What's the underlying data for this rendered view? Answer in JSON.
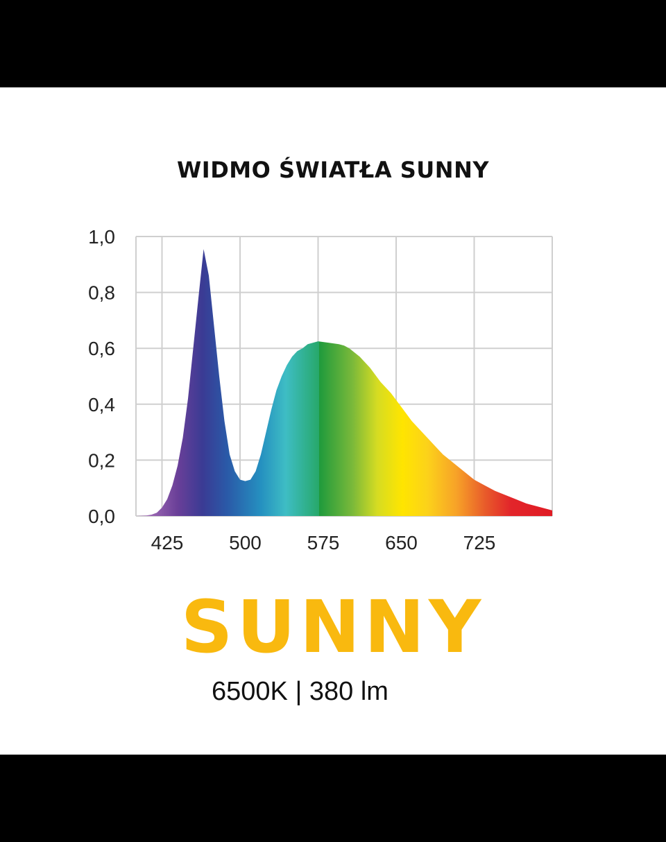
{
  "page": {
    "brand": "SUNNY",
    "spec": "6500K | 380 lm",
    "brand_color": "#f9b90f",
    "background": "#000000",
    "panel_background": "#ffffff"
  },
  "chart_data": {
    "type": "area",
    "title": "WIDMO ŚWIATŁA SUNNY",
    "xlabel": "",
    "ylabel": "",
    "xlim": [
      375,
      775
    ],
    "ylim": [
      0,
      1.0
    ],
    "x_ticks": [
      425,
      500,
      575,
      650,
      725
    ],
    "x_tick_labels": [
      "425",
      "500",
      "575",
      "650",
      "725"
    ],
    "y_ticks": [
      0,
      0.2,
      0.4,
      0.6,
      0.8,
      1.0
    ],
    "y_tick_labels": [
      "0,0",
      "0,2",
      "0,4",
      "0,6",
      "0,8",
      "1,0"
    ],
    "grid": true,
    "fill": "visible-spectrum-gradient",
    "series": [
      {
        "x": [
          375,
          385,
          390,
          395,
          400,
          405,
          410,
          415,
          420,
          425,
          430,
          435,
          440,
          445,
          450,
          455,
          460,
          465,
          470,
          475,
          480,
          485,
          490,
          495,
          500,
          505,
          510,
          515,
          520,
          525,
          530,
          535,
          540,
          550,
          560,
          570,
          575,
          580,
          590,
          600,
          610,
          620,
          630,
          640,
          650,
          660,
          670,
          680,
          690,
          700,
          710,
          720,
          730,
          740,
          750,
          760,
          770,
          775
        ],
        "y": [
          0.0,
          0.002,
          0.005,
          0.012,
          0.03,
          0.06,
          0.11,
          0.18,
          0.28,
          0.42,
          0.6,
          0.78,
          0.955,
          0.86,
          0.68,
          0.5,
          0.34,
          0.22,
          0.16,
          0.13,
          0.125,
          0.13,
          0.16,
          0.22,
          0.3,
          0.38,
          0.45,
          0.5,
          0.54,
          0.57,
          0.59,
          0.6,
          0.615,
          0.625,
          0.62,
          0.615,
          0.61,
          0.6,
          0.57,
          0.53,
          0.48,
          0.44,
          0.39,
          0.34,
          0.3,
          0.26,
          0.22,
          0.19,
          0.16,
          0.13,
          0.11,
          0.09,
          0.075,
          0.06,
          0.045,
          0.035,
          0.025,
          0.02
        ]
      }
    ]
  }
}
